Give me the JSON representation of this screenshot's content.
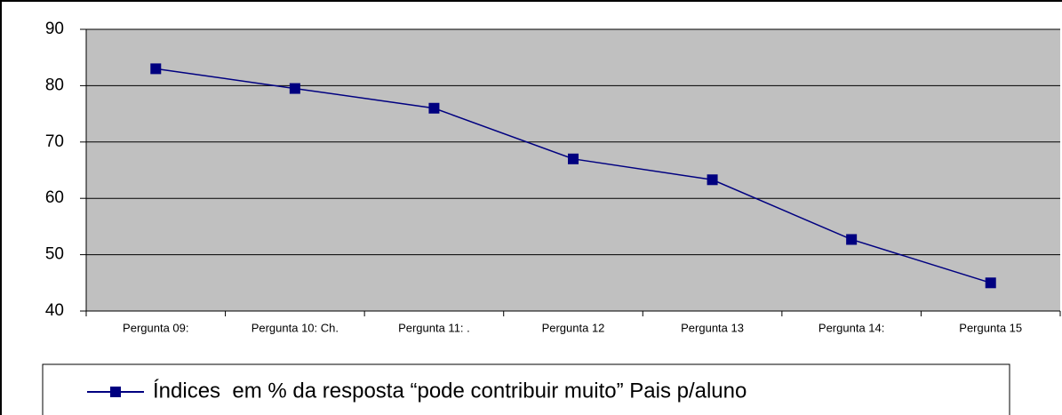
{
  "chart_data": {
    "type": "line",
    "categories": [
      "Pergunta 09:",
      "Pergunta 10: Ch.",
      "Pergunta 11: .",
      "Pergunta 12",
      "Pergunta 13",
      "Pergunta 14:",
      "Pergunta 15"
    ],
    "series": [
      {
        "name": "Índices  em % da resposta “pode contribuir muito” Pais p/aluno",
        "color": "#000080",
        "values": [
          83,
          79.5,
          76,
          67,
          63.3,
          52.7,
          45
        ]
      }
    ],
    "ylim": [
      40,
      90
    ],
    "yticks": [
      40,
      50,
      60,
      70,
      80,
      90
    ],
    "grid": true,
    "legend": "bottom"
  }
}
